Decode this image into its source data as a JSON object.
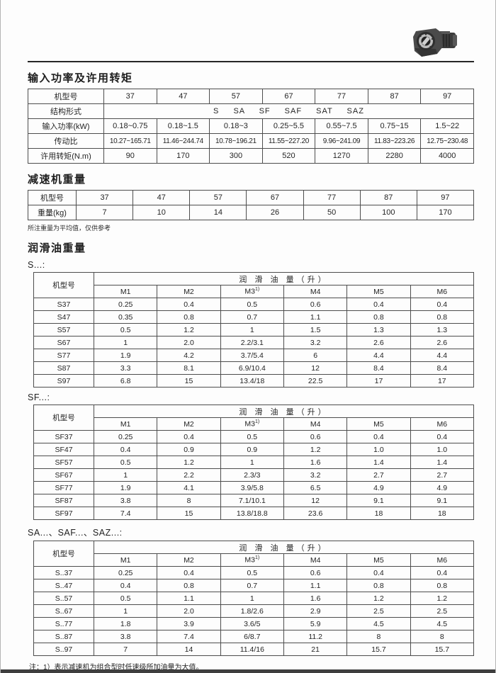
{
  "page": {
    "section1_title": "输入功率及许用转矩",
    "section2_title": "减速机重量",
    "section3_title": "润滑油重量",
    "weight_note": "所注重量为平均值，仅供参考",
    "footnote": "注：1）表示减速机为组合型时低速级所加油量为大值。"
  },
  "power_table": {
    "row_labels": [
      "机型号",
      "结构形式",
      "输入功率(kW)",
      "传动比",
      "许用转矩(N.m)"
    ],
    "models": [
      "37",
      "47",
      "57",
      "67",
      "77",
      "87",
      "97"
    ],
    "structure_forms": "S SA SF SAF SAT SAZ",
    "input_power_kw": [
      "0.18~0.75",
      "0.18~1.5",
      "0.18~3",
      "0.25~5.5",
      "0.55~7.5",
      "0.75~15",
      "1.5~22"
    ],
    "ratio": [
      "10.27~165.71",
      "11.46~244.74",
      "10.78~196.21",
      "11.55~227.20",
      "9.96~241.09",
      "11.83~223.26",
      "12.75~230.48"
    ],
    "torque_nm": [
      "90",
      "170",
      "300",
      "520",
      "1270",
      "2280",
      "4000"
    ]
  },
  "weight_table": {
    "row_labels": [
      "机型号",
      "重量(kg)"
    ],
    "models": [
      "37",
      "47",
      "57",
      "67",
      "77",
      "87",
      "97"
    ],
    "weights_kg": [
      "7",
      "10",
      "14",
      "26",
      "50",
      "100",
      "170"
    ]
  },
  "oil_header": {
    "model_col": "机型号",
    "quantity_title": "润 滑 油 量（升）",
    "columns": [
      "M1",
      "M2",
      "M3",
      "M4",
      "M5",
      "M6"
    ],
    "m3_superscript": "1)"
  },
  "oil_tables": [
    {
      "label": "S...:",
      "rows": [
        [
          "S37",
          "0.25",
          "0.4",
          "0.5",
          "0.6",
          "0.4",
          "0.4"
        ],
        [
          "S47",
          "0.35",
          "0.8",
          "0.7",
          "1.1",
          "0.8",
          "0.8"
        ],
        [
          "S57",
          "0.5",
          "1.2",
          "1",
          "1.5",
          "1.3",
          "1.3"
        ],
        [
          "S67",
          "1",
          "2.0",
          "2.2/3.1",
          "3.2",
          "2.6",
          "2.6"
        ],
        [
          "S77",
          "1.9",
          "4.2",
          "3.7/5.4",
          "6",
          "4.4",
          "4.4"
        ],
        [
          "S87",
          "3.3",
          "8.1",
          "6.9/10.4",
          "12",
          "8.4",
          "8.4"
        ],
        [
          "S97",
          "6.8",
          "15",
          "13.4/18",
          "22.5",
          "17",
          "17"
        ]
      ]
    },
    {
      "label": "SF...:",
      "rows": [
        [
          "SF37",
          "0.25",
          "0.4",
          "0.5",
          "0.6",
          "0.4",
          "0.4"
        ],
        [
          "SF47",
          "0.4",
          "0.9",
          "0.9",
          "1.2",
          "1.0",
          "1.0"
        ],
        [
          "SF57",
          "0.5",
          "1.2",
          "1",
          "1.6",
          "1.4",
          "1.4"
        ],
        [
          "SF67",
          "1",
          "2.2",
          "2.3/3",
          "3.2",
          "2.7",
          "2.7"
        ],
        [
          "SF77",
          "1.9",
          "4.1",
          "3.9/5.8",
          "6.5",
          "4.9",
          "4.9"
        ],
        [
          "SF87",
          "3.8",
          "8",
          "7.1/10.1",
          "12",
          "9.1",
          "9.1"
        ],
        [
          "SF97",
          "7.4",
          "15",
          "13.8/18.8",
          "23.6",
          "18",
          "18"
        ]
      ]
    },
    {
      "label": "SA...、SAF...、SAZ...:",
      "rows": [
        [
          "S..37",
          "0.25",
          "0.4",
          "0.5",
          "0.6",
          "0.4",
          "0.4"
        ],
        [
          "S..47",
          "0.4",
          "0.8",
          "0.7",
          "1.1",
          "0.8",
          "0.8"
        ],
        [
          "S..57",
          "0.5",
          "1.1",
          "1",
          "1.6",
          "1.2",
          "1.2"
        ],
        [
          "S..67",
          "1",
          "2.0",
          "1.8/2.6",
          "2.9",
          "2.5",
          "2.5"
        ],
        [
          "S..77",
          "1.8",
          "3.9",
          "3.6/5",
          "5.9",
          "4.5",
          "4.5"
        ],
        [
          "S..87",
          "3.8",
          "7.4",
          "6/8.7",
          "11.2",
          "8",
          "8"
        ],
        [
          "S..97",
          "7",
          "14",
          "11.4/16",
          "21",
          "15.7",
          "15.7"
        ]
      ]
    }
  ]
}
